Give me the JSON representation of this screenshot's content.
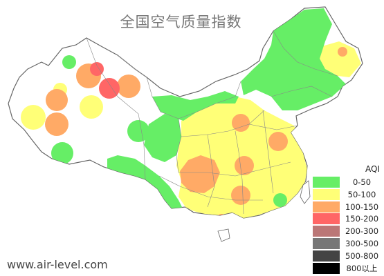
{
  "title": "全国空气质量指数",
  "website": "www.air-level.com",
  "legend": {
    "title": "AQI",
    "items": [
      {
        "label": "0-50",
        "color": "#66ee66"
      },
      {
        "label": "50-100",
        "color": "#ffff77"
      },
      {
        "label": "100-150",
        "color": "#ffaa66"
      },
      {
        "label": "150-200",
        "color": "#ff6666"
      },
      {
        "label": "200-300",
        "color": "#bb7777"
      },
      {
        "label": "300-500",
        "color": "#777777"
      },
      {
        "label": "500-800",
        "color": "#444444"
      },
      {
        "label": "800以上",
        "color": "#000000"
      }
    ]
  },
  "colors": {
    "country_fill": "#ffffff",
    "border": "#666666",
    "province_border": "#888888"
  }
}
